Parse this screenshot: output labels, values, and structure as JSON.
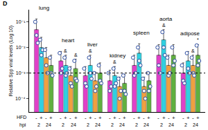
{
  "chart_data": {
    "type": "bar",
    "panel": "D",
    "y_label": "Relative Spp viral levels (Log 10)",
    "log": "y",
    "ylim": [
      3e-05,
      0.3
    ],
    "yticks": [
      {
        "value": 0.0001,
        "label": "10⁻⁴"
      },
      {
        "value": 0.001,
        "label": "10⁻³"
      },
      {
        "value": 0.01,
        "label": "10⁻²"
      },
      {
        "value": 0.1,
        "label": "10⁻¹"
      }
    ],
    "tick_labels": "y",
    "grid": false,
    "reference_line": 0.001,
    "row_labels": {
      "hfd": "HFD",
      "hpi": "hpi"
    },
    "categories": [
      "lung",
      "heart",
      "liver",
      "kidney",
      "spleen",
      "aorta",
      "adipose"
    ],
    "series": [
      {
        "hfd": "-",
        "hpi": "2",
        "color": "#e040c8",
        "values": [
          0.05,
          0.003,
          0.0008,
          0.0005,
          0.002,
          0.005,
          0.001
        ],
        "errors": [
          0.08,
          0.004,
          0.001,
          0.0008,
          0.003,
          0.008,
          0.0015
        ],
        "points": [
          [
            0.1,
            0.03,
            0.015
          ],
          [
            0.006,
            0.001,
            0.0015
          ],
          [
            0.0015,
            0.0004,
            0.0003
          ],
          [
            0.001,
            0.0002,
            0.0003
          ],
          [
            0.004,
            0.0008,
            0.001
          ],
          [
            0.01,
            0.002,
            0.001
          ],
          [
            0.002,
            0.0005,
            0.0004
          ]
        ]
      },
      {
        "hfd": "+",
        "hpi": "2",
        "color": "#30d0e0",
        "values": [
          0.01,
          0.002,
          0.002,
          0.0008,
          0.006,
          0.02,
          0.003
        ],
        "errors": [
          0.015,
          0.003,
          0.003,
          0.001,
          0.008,
          0.03,
          0.004
        ],
        "points": [
          [
            0.02,
            0.005,
            0.008
          ],
          [
            0.004,
            0.0008,
            0.001
          ],
          [
            0.004,
            0.001,
            0.0006
          ],
          [
            0.0015,
            0.0003,
            0.0004
          ],
          [
            0.01,
            0.003,
            0.002
          ],
          [
            0.04,
            0.01,
            0.005
          ],
          [
            0.006,
            0.0015,
            0.001
          ]
        ]
      },
      {
        "hfd": "-",
        "hpi": "24",
        "color": "#f0a040",
        "values": [
          0.004,
          0.0008,
          0.0005,
          0.0003,
          0.0003,
          0.002,
          0.002
        ],
        "errors": [
          0.006,
          0.001,
          0.0006,
          0.0004,
          0.0004,
          0.003,
          0.003
        ],
        "points": [
          [
            0.008,
            0.002,
            0.001
          ],
          [
            0.0015,
            0.0004,
            0.0003
          ],
          [
            0.001,
            0.0002,
            0.0003
          ],
          [
            0.0006,
            0.0001,
            0.0002
          ],
          [
            0.0006,
            0.0002,
            0.0001
          ],
          [
            0.004,
            0.0008,
            0.001
          ],
          [
            0.004,
            0.001,
            0.0008
          ]
        ]
      },
      {
        "hfd": "+",
        "hpi": "24",
        "color": "#60b040",
        "values": [
          0.002,
          0.0015,
          0.001,
          0.0004,
          0.0005,
          0.005,
          0.005
        ],
        "errors": [
          0.003,
          0.002,
          0.0015,
          0.0005,
          0.0006,
          0.008,
          0.008
        ],
        "points": [
          [
            0.004,
            0.001,
            0.0008
          ],
          [
            0.003,
            0.0006,
            0.0005
          ],
          [
            0.002,
            0.0005,
            0.0004
          ],
          [
            0.0008,
            0.0002,
            0.00015
          ],
          [
            0.001,
            0.0002,
            0.0003
          ],
          [
            0.01,
            0.002,
            0.003
          ],
          [
            0.012,
            0.002,
            0.003
          ]
        ]
      }
    ],
    "annotations": [
      {
        "category": "heart",
        "series": 1,
        "text": "&"
      },
      {
        "category": "heart",
        "series": 3,
        "text": "&"
      },
      {
        "category": "liver",
        "series": 1,
        "text": "&"
      },
      {
        "category": "kidney",
        "series": 1,
        "text": "&"
      },
      {
        "category": "aorta",
        "series": 1,
        "text": "&"
      },
      {
        "category": "adipose",
        "series": 2,
        "text": "&"
      },
      {
        "category": "adipose",
        "series": 3,
        "text": "*"
      }
    ]
  }
}
